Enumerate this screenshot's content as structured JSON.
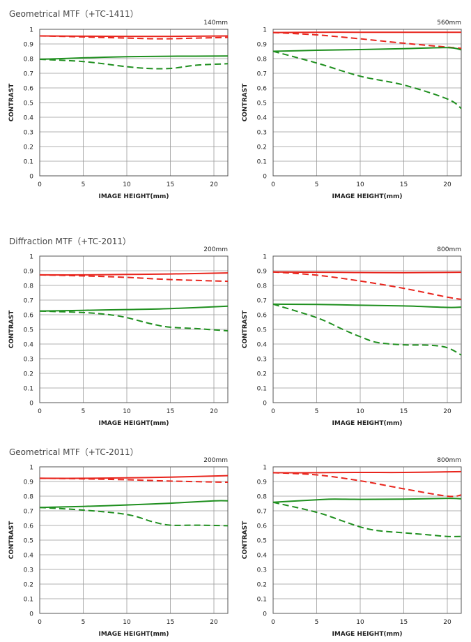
{
  "section_titles": [
    "Geometrical MTF（+TC-1411）",
    "Diffraction MTF（+TC-2011）",
    "Geometrical MTF（+TC-2011）"
  ],
  "colors": {
    "sagittal_color": "#e8251d",
    "meridional_color": "#1f8f1f",
    "grid": "#999999"
  },
  "chart_data": [
    {
      "type": "line",
      "corner_label": "140mm",
      "xlabel": "IMAGE HEIGHT(mm)",
      "ylabel": "CONTRAST",
      "xlim": [
        0,
        21.6
      ],
      "ylim": [
        0,
        1
      ],
      "xticks": [
        "0",
        "5",
        "10",
        "15",
        "20"
      ],
      "yticks": [
        "0",
        "0.1",
        "0.2",
        "0.3",
        "0.4",
        "0.5",
        "0.6",
        "0.7",
        "0.8",
        "0.9",
        "1"
      ],
      "series": [
        {
          "color": "#e8251d",
          "style": "solid",
          "x": [
            0,
            5,
            10,
            15,
            21.6
          ],
          "y": [
            0.955,
            0.953,
            0.952,
            0.952,
            0.955
          ]
        },
        {
          "color": "#e8251d",
          "style": "dashed",
          "x": [
            0,
            5,
            10,
            14,
            18,
            21.6
          ],
          "y": [
            0.955,
            0.948,
            0.94,
            0.935,
            0.94,
            0.945
          ]
        },
        {
          "color": "#1f8f1f",
          "style": "solid",
          "x": [
            0,
            5,
            10,
            15,
            21.6
          ],
          "y": [
            0.795,
            0.805,
            0.813,
            0.816,
            0.818
          ]
        },
        {
          "color": "#1f8f1f",
          "style": "dashed",
          "x": [
            0,
            5,
            10,
            12.5,
            15,
            18,
            21.6
          ],
          "y": [
            0.795,
            0.78,
            0.745,
            0.733,
            0.733,
            0.755,
            0.765
          ]
        }
      ]
    },
    {
      "type": "line",
      "corner_label": "560mm",
      "xlabel": "IMAGE HEIGHT(mm)",
      "ylabel": "CONTRAST",
      "xlim": [
        0,
        21.6
      ],
      "ylim": [
        0,
        1
      ],
      "xticks": [
        "0",
        "5",
        "10",
        "15",
        "20"
      ],
      "yticks": [
        "0",
        "0.1",
        "0.2",
        "0.3",
        "0.4",
        "0.5",
        "0.6",
        "0.7",
        "0.8",
        "0.9",
        "1"
      ],
      "series": [
        {
          "color": "#e8251d",
          "style": "solid",
          "x": [
            0,
            5,
            10,
            15,
            21.6
          ],
          "y": [
            0.978,
            0.98,
            0.98,
            0.98,
            0.98
          ]
        },
        {
          "color": "#e8251d",
          "style": "dashed",
          "x": [
            0,
            5,
            10,
            15,
            21.6
          ],
          "y": [
            0.978,
            0.962,
            0.935,
            0.905,
            0.87
          ]
        },
        {
          "color": "#1f8f1f",
          "style": "solid",
          "x": [
            0,
            5,
            10,
            15,
            20,
            21.6
          ],
          "y": [
            0.85,
            0.857,
            0.862,
            0.868,
            0.875,
            0.86
          ]
        },
        {
          "color": "#1f8f1f",
          "style": "dashed",
          "x": [
            0,
            5,
            10,
            15,
            20,
            21.6
          ],
          "y": [
            0.85,
            0.77,
            0.68,
            0.62,
            0.525,
            0.46
          ]
        }
      ]
    },
    {
      "type": "line",
      "corner_label": "200mm",
      "xlabel": "IMAGE HEIGHT(mm)",
      "ylabel": "CONTRAST",
      "xlim": [
        0,
        21.6
      ],
      "ylim": [
        0,
        1
      ],
      "xticks": [
        "0",
        "5",
        "10",
        "15",
        "20"
      ],
      "yticks": [
        "0",
        "0.1",
        "0.2",
        "0.3",
        "0.4",
        "0.5",
        "0.6",
        "0.7",
        "0.8",
        "0.9",
        "1"
      ],
      "series": [
        {
          "color": "#e8251d",
          "style": "solid",
          "x": [
            0,
            5,
            10,
            15,
            21.6
          ],
          "y": [
            0.872,
            0.872,
            0.875,
            0.878,
            0.885
          ]
        },
        {
          "color": "#e8251d",
          "style": "dashed",
          "x": [
            0,
            5,
            10,
            15,
            21.6
          ],
          "y": [
            0.872,
            0.865,
            0.855,
            0.84,
            0.828
          ]
        },
        {
          "color": "#1f8f1f",
          "style": "solid",
          "x": [
            0,
            5,
            10,
            15,
            21.6
          ],
          "y": [
            0.625,
            0.63,
            0.635,
            0.642,
            0.658
          ]
        },
        {
          "color": "#1f8f1f",
          "style": "dashed",
          "x": [
            0,
            5,
            8,
            10,
            13,
            15,
            18,
            21.6
          ],
          "y": [
            0.625,
            0.615,
            0.6,
            0.58,
            0.535,
            0.515,
            0.505,
            0.49
          ]
        }
      ]
    },
    {
      "type": "line",
      "corner_label": "800mm",
      "xlabel": "IMAGE HEIGHT(mm)",
      "ylabel": "CONTRAST",
      "xlim": [
        0,
        21.6
      ],
      "ylim": [
        0,
        1
      ],
      "xticks": [
        "0",
        "5",
        "10",
        "15",
        "20"
      ],
      "yticks": [
        "0",
        "0.1",
        "0.2",
        "0.3",
        "0.4",
        "0.5",
        "0.6",
        "0.7",
        "0.8",
        "0.9",
        "1"
      ],
      "series": [
        {
          "color": "#e8251d",
          "style": "solid",
          "x": [
            0,
            5,
            10,
            15,
            21.6
          ],
          "y": [
            0.892,
            0.89,
            0.888,
            0.887,
            0.89
          ]
        },
        {
          "color": "#e8251d",
          "style": "dashed",
          "x": [
            0,
            5,
            10,
            15,
            20,
            21.6
          ],
          "y": [
            0.892,
            0.87,
            0.83,
            0.78,
            0.72,
            0.705
          ]
        },
        {
          "color": "#1f8f1f",
          "style": "solid",
          "x": [
            0,
            5,
            10,
            15,
            20,
            21.6
          ],
          "y": [
            0.672,
            0.67,
            0.665,
            0.66,
            0.65,
            0.652
          ]
        },
        {
          "color": "#1f8f1f",
          "style": "dashed",
          "x": [
            0,
            5,
            8,
            10,
            12,
            15,
            18,
            20,
            21.6
          ],
          "y": [
            0.672,
            0.58,
            0.5,
            0.45,
            0.41,
            0.395,
            0.392,
            0.375,
            0.325
          ]
        }
      ]
    },
    {
      "type": "line",
      "corner_label": "200mm",
      "xlabel": "IMAGE HEIGHT(mm)",
      "ylabel": "CONTRAST",
      "xlim": [
        0,
        21.6
      ],
      "ylim": [
        0,
        1
      ],
      "xticks": [
        "0",
        "5",
        "10",
        "15",
        "20"
      ],
      "yticks": [
        "0",
        "0.1",
        "0.2",
        "0.3",
        "0.4",
        "0.5",
        "0.6",
        "0.7",
        "0.8",
        "0.9",
        "1"
      ],
      "series": [
        {
          "color": "#e8251d",
          "style": "solid",
          "x": [
            0,
            5,
            10,
            15,
            21.6
          ],
          "y": [
            0.922,
            0.922,
            0.925,
            0.93,
            0.94
          ]
        },
        {
          "color": "#e8251d",
          "style": "dashed",
          "x": [
            0,
            5,
            10,
            15,
            21.6
          ],
          "y": [
            0.922,
            0.918,
            0.912,
            0.903,
            0.895
          ]
        },
        {
          "color": "#1f8f1f",
          "style": "solid",
          "x": [
            0,
            5,
            10,
            15,
            20,
            21.6
          ],
          "y": [
            0.723,
            0.73,
            0.74,
            0.752,
            0.768,
            0.768
          ]
        },
        {
          "color": "#1f8f1f",
          "style": "dashed",
          "x": [
            0,
            5,
            10,
            13,
            15,
            18,
            21.6
          ],
          "y": [
            0.723,
            0.705,
            0.675,
            0.625,
            0.602,
            0.602,
            0.598
          ]
        }
      ]
    },
    {
      "type": "line",
      "corner_label": "800mm",
      "xlabel": "IMAGE HEIGHT(mm)",
      "ylabel": "CONTRAST",
      "xlim": [
        0,
        21.6
      ],
      "ylim": [
        0,
        1
      ],
      "xticks": [
        "0",
        "5",
        "10",
        "15",
        "20"
      ],
      "yticks": [
        "0",
        "0.1",
        "0.2",
        "0.3",
        "0.4",
        "0.5",
        "0.6",
        "0.7",
        "0.8",
        "0.9",
        "1"
      ],
      "series": [
        {
          "color": "#e8251d",
          "style": "solid",
          "x": [
            0,
            5,
            10,
            15,
            21.6
          ],
          "y": [
            0.96,
            0.96,
            0.962,
            0.962,
            0.967
          ]
        },
        {
          "color": "#e8251d",
          "style": "dashed",
          "x": [
            0,
            5,
            10,
            15,
            20,
            21.6
          ],
          "y": [
            0.96,
            0.945,
            0.905,
            0.85,
            0.8,
            0.808
          ]
        },
        {
          "color": "#1f8f1f",
          "style": "solid",
          "x": [
            0,
            5,
            7,
            10,
            15,
            20,
            21.6
          ],
          "y": [
            0.758,
            0.775,
            0.78,
            0.778,
            0.78,
            0.785,
            0.782
          ]
        },
        {
          "color": "#1f8f1f",
          "style": "dashed",
          "x": [
            0,
            5,
            8,
            10,
            12,
            15,
            18,
            20,
            21.6
          ],
          "y": [
            0.758,
            0.69,
            0.63,
            0.59,
            0.565,
            0.55,
            0.535,
            0.525,
            0.525
          ]
        }
      ]
    }
  ]
}
